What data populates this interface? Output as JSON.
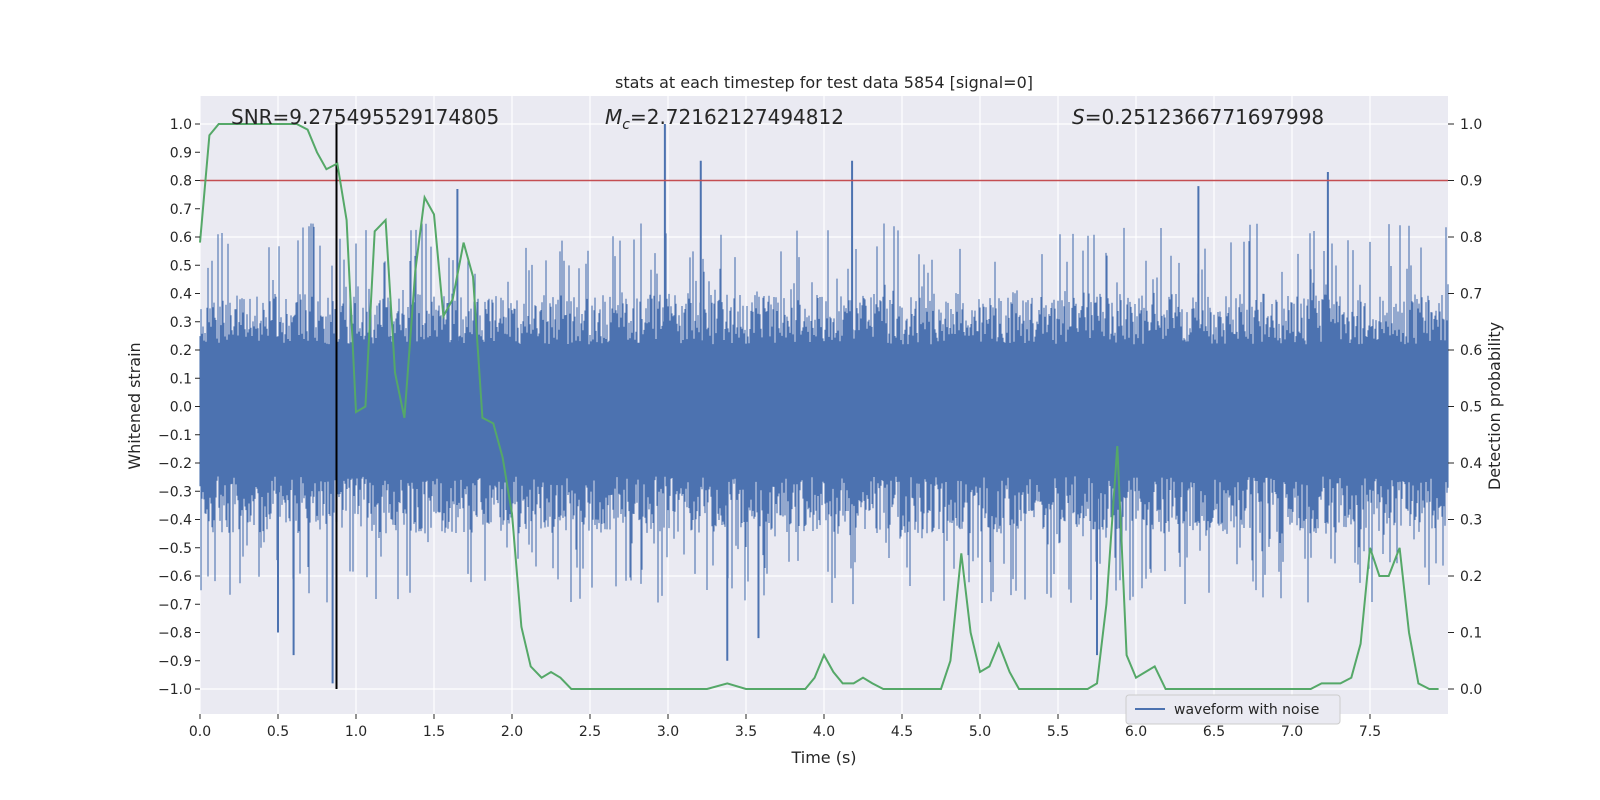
{
  "chart_data": {
    "type": "line",
    "title": "stats at each timestep for test data 5854 [signal=0]",
    "xlabel": "Time (s)",
    "ylabel": "Whitened strain",
    "ylabel_right": "Detection probability",
    "xlim": [
      0,
      8.0
    ],
    "ylim": [
      -1.1,
      1.1
    ],
    "ylim_right": [
      -0.05,
      1.05
    ],
    "x_ticks": [
      0.0,
      0.5,
      1.0,
      1.5,
      2.0,
      2.5,
      3.0,
      3.5,
      4.0,
      4.5,
      5.0,
      5.5,
      6.0,
      6.5,
      7.0,
      7.5
    ],
    "x_tick_labels": [
      "0.0",
      "0.5",
      "1.0",
      "1.5",
      "2.0",
      "2.5",
      "3.0",
      "3.5",
      "4.0",
      "4.5",
      "5.0",
      "5.5",
      "6.0",
      "6.5",
      "7.0",
      "7.5"
    ],
    "y_ticks": [
      1.0,
      0.9,
      0.8,
      0.7,
      0.6,
      0.5,
      0.4,
      0.3,
      0.2,
      0.1,
      0.0,
      -0.1,
      -0.2,
      -0.3,
      -0.4,
      -0.5,
      -0.6,
      -0.7,
      -0.8,
      -0.9,
      -1.0
    ],
    "y_tick_labels": [
      "1.0",
      "0.9",
      "0.8",
      "0.7",
      "0.6",
      "0.5",
      "0.4",
      "0.3",
      "0.2",
      "0.1",
      "0.0",
      "−0.1",
      "−0.2",
      "−0.3",
      "−0.4",
      "−0.5",
      "−0.6",
      "−0.7",
      "−0.8",
      "−0.9",
      "−1.0"
    ],
    "y2_ticks": [
      1.0,
      0.9,
      0.8,
      0.7,
      0.6,
      0.5,
      0.4,
      0.3,
      0.2,
      0.1,
      0.0
    ],
    "y2_tick_labels": [
      "1.0",
      "0.9",
      "0.8",
      "0.7",
      "0.6",
      "0.5",
      "0.4",
      "0.3",
      "0.2",
      "0.1",
      "0.0"
    ],
    "annotations": {
      "snr": "SNR=9.275495529174805",
      "mc_symbol": "M",
      "mc_subscript": "c",
      "mc_value": "=2.72162127494812",
      "s_symbol": "S",
      "s_value": "=0.2512366771697998"
    },
    "legend": [
      {
        "label": "waveform with noise",
        "color": "#4c72b0"
      }
    ],
    "legend_position": "lower-right",
    "threshold": {
      "axis": "right",
      "value": 0.9,
      "color": "#c44e52"
    },
    "marker_line": {
      "x": 0.875,
      "y_range": [
        -1.0,
        1.0
      ],
      "color": "#000000"
    },
    "waveform": {
      "name": "waveform with noise",
      "color": "#4c72b0",
      "x_range": [
        0.0,
        8.0
      ],
      "typical_amplitude": [
        -0.45,
        0.4
      ],
      "notable_peaks": [
        {
          "x": 0.85,
          "y": -0.98
        },
        {
          "x": 0.6,
          "y": -0.88
        },
        {
          "x": 0.5,
          "y": -0.8
        },
        {
          "x": 1.65,
          "y": 0.77
        },
        {
          "x": 2.98,
          "y": 1.0
        },
        {
          "x": 3.21,
          "y": 0.87
        },
        {
          "x": 3.38,
          "y": -0.9
        },
        {
          "x": 4.18,
          "y": 0.87
        },
        {
          "x": 3.58,
          "y": -0.82
        },
        {
          "x": 5.75,
          "y": -0.88
        },
        {
          "x": 7.23,
          "y": 0.83
        },
        {
          "x": 6.4,
          "y": 0.78
        }
      ]
    },
    "series": [
      {
        "name": "detection probability",
        "color": "#55a868",
        "axis": "right",
        "x": [
          0.0,
          0.06,
          0.12,
          0.19,
          0.25,
          0.31,
          0.38,
          0.44,
          0.5,
          0.56,
          0.62,
          0.69,
          0.75,
          0.81,
          0.88,
          0.94,
          1.0,
          1.06,
          1.12,
          1.19,
          1.25,
          1.31,
          1.38,
          1.44,
          1.5,
          1.56,
          1.62,
          1.69,
          1.75,
          1.81,
          1.88,
          1.94,
          2.0,
          2.06,
          2.12,
          2.19,
          2.25,
          2.31,
          2.38,
          2.44,
          2.5,
          2.62,
          2.75,
          2.88,
          3.0,
          3.12,
          3.25,
          3.38,
          3.5,
          3.62,
          3.75,
          3.88,
          3.94,
          4.0,
          4.06,
          4.12,
          4.19,
          4.25,
          4.31,
          4.38,
          4.44,
          4.5,
          4.56,
          4.62,
          4.69,
          4.75,
          4.81,
          4.88,
          4.94,
          5.0,
          5.06,
          5.12,
          5.19,
          5.25,
          5.31,
          5.38,
          5.44,
          5.5,
          5.56,
          5.62,
          5.69,
          5.75,
          5.81,
          5.88,
          5.94,
          6.0,
          6.06,
          6.12,
          6.19,
          6.25,
          6.31,
          6.38,
          6.44,
          6.5,
          6.62,
          6.75,
          6.88,
          7.0,
          7.06,
          7.12,
          7.19,
          7.25,
          7.31,
          7.38,
          7.44,
          7.5,
          7.56,
          7.62,
          7.69,
          7.75,
          7.81,
          7.88,
          7.94
        ],
        "values": [
          0.79,
          0.98,
          1.0,
          1.0,
          1.0,
          1.0,
          1.0,
          1.0,
          1.0,
          1.0,
          1.0,
          0.99,
          0.95,
          0.92,
          0.93,
          0.83,
          0.49,
          0.5,
          0.81,
          0.83,
          0.56,
          0.48,
          0.74,
          0.87,
          0.84,
          0.66,
          0.69,
          0.79,
          0.73,
          0.48,
          0.47,
          0.41,
          0.31,
          0.11,
          0.04,
          0.02,
          0.03,
          0.02,
          0.0,
          0.0,
          0.0,
          0.0,
          0.0,
          0.0,
          0.0,
          0.0,
          0.0,
          0.01,
          0.0,
          0.0,
          0.0,
          0.0,
          0.02,
          0.06,
          0.03,
          0.01,
          0.01,
          0.02,
          0.01,
          0.0,
          0.0,
          0.0,
          0.0,
          0.0,
          0.0,
          0.0,
          0.05,
          0.24,
          0.1,
          0.03,
          0.04,
          0.08,
          0.03,
          0.0,
          0.0,
          0.0,
          0.0,
          0.0,
          0.0,
          0.0,
          0.0,
          0.01,
          0.15,
          0.43,
          0.06,
          0.02,
          0.03,
          0.04,
          0.0,
          0.0,
          0.0,
          0.0,
          0.0,
          0.0,
          0.0,
          0.0,
          0.0,
          0.0,
          0.0,
          0.0,
          0.01,
          0.01,
          0.01,
          0.02,
          0.08,
          0.25,
          0.2,
          0.2,
          0.25,
          0.1,
          0.01,
          0.0,
          0.0
        ]
      }
    ]
  }
}
